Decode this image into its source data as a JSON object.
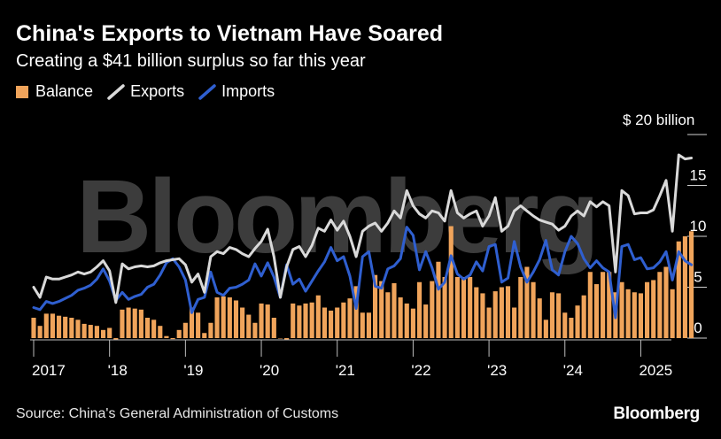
{
  "title": "China's Exports to Vietnam Have Soared",
  "subtitle": "Creating a $41 billion surplus so far this year",
  "legend": [
    {
      "label": "Balance",
      "kind": "bar",
      "color": "#f0a45b"
    },
    {
      "label": "Exports",
      "kind": "line",
      "color": "#d9d9d9"
    },
    {
      "label": "Imports",
      "kind": "line",
      "color": "#2f5fd0"
    }
  ],
  "source": "Source: China's General Administration of Customs",
  "brand": "Bloomberg",
  "watermark": "Bloomberg",
  "y_unit_label": "$ 20 billion",
  "chart_data": {
    "type": "bar+line",
    "ylim": [
      -2,
      20
    ],
    "yticks": [
      0,
      5,
      10,
      15
    ],
    "ytick_labels": [
      "0",
      "5",
      "10",
      "15"
    ],
    "x_start": "2017-01",
    "x_end": "2025-05",
    "xticks": [
      {
        "month": "2017-01",
        "label": "2017"
      },
      {
        "month": "2018-01",
        "label": "'18"
      },
      {
        "month": "2019-01",
        "label": "'19"
      },
      {
        "month": "2020-01",
        "label": "'20"
      },
      {
        "month": "2021-01",
        "label": "'21"
      },
      {
        "month": "2022-01",
        "label": "'22"
      },
      {
        "month": "2023-01",
        "label": "'23"
      },
      {
        "month": "2024-01",
        "label": "'24"
      },
      {
        "month": "2025-01",
        "label": "2025"
      }
    ],
    "series": [
      {
        "name": "Balance",
        "type": "bar",
        "color": "#f0a45b",
        "values": [
          2.0,
          1.2,
          2.4,
          2.4,
          2.2,
          2.1,
          2.0,
          1.8,
          1.4,
          1.3,
          1.2,
          0.8,
          1.0,
          -0.2,
          2.8,
          3.0,
          2.9,
          2.8,
          2.0,
          1.8,
          1.2,
          0.2,
          -0.1,
          0.8,
          1.5,
          3.0,
          2.5,
          0.5,
          1.5,
          4.0,
          4.1,
          4.0,
          3.7,
          3.0,
          2.3,
          1.5,
          3.4,
          3.3,
          2.0,
          0.0,
          -0.2,
          3.4,
          3.2,
          3.4,
          3.5,
          4.2,
          3.0,
          2.7,
          3.0,
          3.5,
          3.9,
          5.1,
          2.5,
          2.5,
          6.2,
          5.6,
          4.5,
          5.4,
          4.0,
          3.4,
          2.9,
          5.5,
          3.3,
          5.6,
          7.5,
          6.0,
          11.0,
          6.0,
          6.0,
          6.0,
          5.0,
          4.4,
          3.0,
          4.6,
          5.0,
          5.1,
          3.0,
          6.0,
          7.0,
          5.5,
          3.9,
          1.8,
          4.5,
          4.4,
          2.5,
          2.0,
          3.2,
          4.2,
          6.5,
          5.3,
          6.5,
          6.5,
          4.5,
          5.5,
          4.8,
          4.5,
          4.4,
          5.5,
          5.7,
          6.5,
          7.0,
          4.8,
          9.5,
          10.0,
          10.5
        ]
      },
      {
        "name": "Exports",
        "type": "line",
        "color": "#d9d9d9",
        "values": [
          5.0,
          4.0,
          6.0,
          5.8,
          5.8,
          6.0,
          6.2,
          6.5,
          6.3,
          6.5,
          7.0,
          7.6,
          6.6,
          3.5,
          7.3,
          6.8,
          7.0,
          7.1,
          7.0,
          7.1,
          7.4,
          7.6,
          7.7,
          7.8,
          7.2,
          5.5,
          6.3,
          4.5,
          8.0,
          8.5,
          8.3,
          8.9,
          8.7,
          8.3,
          8.0,
          8.8,
          9.5,
          10.7,
          8.0,
          4.0,
          7.0,
          8.7,
          9.0,
          8.0,
          9.1,
          10.8,
          10.5,
          11.6,
          10.6,
          11.5,
          10.0,
          8.0,
          10.5,
          11.0,
          11.3,
          10.5,
          11.3,
          12.5,
          11.8,
          14.5,
          13.0,
          12.2,
          11.8,
          12.5,
          12.3,
          11.5,
          14.5,
          12.3,
          11.8,
          12.2,
          12.5,
          11.0,
          12.0,
          13.8,
          10.5,
          11.0,
          12.5,
          13.0,
          12.5,
          12.0,
          11.6,
          11.4,
          11.2,
          10.6,
          11.0,
          12.0,
          12.5,
          12.0,
          13.4,
          12.9,
          13.4,
          13.0,
          6.5,
          14.5,
          14.0,
          12.2,
          12.3,
          12.3,
          12.6,
          14.0,
          15.5,
          10.5,
          18.0,
          17.6,
          17.7
        ]
      },
      {
        "name": "Imports",
        "type": "line",
        "color": "#2f5fd0",
        "values": [
          3.0,
          2.8,
          3.6,
          3.4,
          3.6,
          3.9,
          4.2,
          4.7,
          4.9,
          5.2,
          5.8,
          6.8,
          5.6,
          3.7,
          4.5,
          3.8,
          4.1,
          4.3,
          5.0,
          5.3,
          6.2,
          7.4,
          7.8,
          7.0,
          5.7,
          2.5,
          3.8,
          4.0,
          6.5,
          4.5,
          4.2,
          4.9,
          5.0,
          5.3,
          5.7,
          7.3,
          6.1,
          7.4,
          6.0,
          4.0,
          7.2,
          5.3,
          5.8,
          4.6,
          5.6,
          6.6,
          7.5,
          8.9,
          7.6,
          8.0,
          6.1,
          2.9,
          8.0,
          8.5,
          5.1,
          4.9,
          6.8,
          7.1,
          7.8,
          10.9,
          10.1,
          6.7,
          8.5,
          6.9,
          4.8,
          5.5,
          8.1,
          6.3,
          5.8,
          6.2,
          7.5,
          6.6,
          9.0,
          9.2,
          5.5,
          5.9,
          9.5,
          7.0,
          5.5,
          6.5,
          7.7,
          9.6,
          6.7,
          6.2,
          8.5,
          10.0,
          9.3,
          7.8,
          6.9,
          7.6,
          6.9,
          6.5,
          2.0,
          9.0,
          9.2,
          7.7,
          7.9,
          6.8,
          6.9,
          7.5,
          8.5,
          5.7,
          8.5,
          7.6,
          7.2
        ]
      }
    ]
  }
}
